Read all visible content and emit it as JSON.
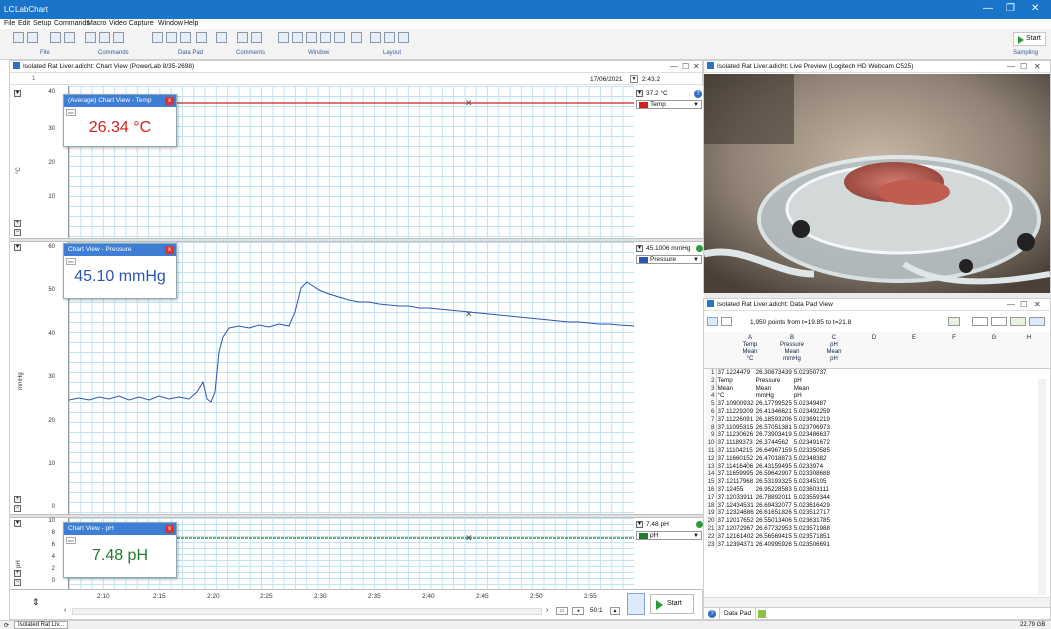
{
  "app": {
    "logo_text": "LC",
    "title": "LabChart"
  },
  "menu": [
    "File",
    "Edit",
    "Setup",
    "Commands",
    "Macro",
    "Video Capture",
    "Window",
    "Help"
  ],
  "toolbar": {
    "groups": [
      "File",
      "Commands",
      "Data Pad",
      "Comments",
      "Window",
      "Layout"
    ],
    "start_label": "Start",
    "sampling_label": "Sampling"
  },
  "chart_window": {
    "title": "Isolated Rat Liver.adicht: Chart View (PowerLab 8/35-2698)",
    "date": "17/06/2021",
    "time": "2:43.2",
    "ruler_mark": "1",
    "channels": [
      {
        "unit": "°C",
        "ticks": [
          "40",
          "30",
          "20",
          "10"
        ],
        "readout": "37.2 °C",
        "name": "Temp",
        "color": "#d42020"
      },
      {
        "unit": "mmHg",
        "ticks": [
          "60",
          "50",
          "40",
          "30",
          "20",
          "10",
          "0"
        ],
        "readout": "45.1006 mmHg",
        "name": "Pressure",
        "color": "#2b55b0"
      },
      {
        "unit": "pH",
        "ticks": [
          "10",
          "8",
          "6",
          "4",
          "2",
          "0"
        ],
        "readout": "7.48 pH",
        "name": "pH",
        "color": "#207a30"
      }
    ],
    "popups": [
      {
        "title": "(Average) Chart View - Temp",
        "value": "26.34 °C",
        "color": "#d42020"
      },
      {
        "title": "Chart View - Pressure",
        "value": "45.10 mmHg",
        "color": "#2b55b0"
      },
      {
        "title": "Chart View - pH",
        "value": "7.48 pH",
        "color": "#207a30"
      }
    ],
    "time_ticks": [
      "2:10",
      "2:15",
      "2:20",
      "2:25",
      "2:30",
      "2:35",
      "2:40",
      "2:45",
      "2:50",
      "2:55"
    ],
    "zoom": "50:1",
    "start_label": "Start"
  },
  "preview_window": {
    "title": "Isolated Rat Liver.adicht: Live Preview (Logitech HD Webcam C525)"
  },
  "datapad_window": {
    "title": "Isolated Rat Liver.adicht: Data Pad View",
    "info": "1,950 points from t=19.85 to t=21.8",
    "columns": [
      {
        "letter": "A",
        "lines": [
          "Temp",
          "Mean",
          "°C"
        ]
      },
      {
        "letter": "B",
        "lines": [
          "Pressure",
          "Mean",
          "mmHg"
        ]
      },
      {
        "letter": "C",
        "lines": [
          "pH",
          "Mean",
          "pH"
        ]
      },
      {
        "letter": "D",
        "lines": []
      },
      {
        "letter": "E",
        "lines": []
      },
      {
        "letter": "F",
        "lines": []
      },
      {
        "letter": "G",
        "lines": []
      },
      {
        "letter": "H",
        "lines": []
      }
    ],
    "rows": [
      [
        "1",
        "37.1224479",
        "26.30873439",
        "5.02350737"
      ],
      [
        "2",
        "Temp",
        "Pressure",
        "pH"
      ],
      [
        "3",
        "Mean",
        "Mean",
        "Mean"
      ],
      [
        "4",
        "°C",
        "mmHg",
        "pH"
      ],
      [
        "5",
        "37.10900932",
        "26.17799525",
        "5.02349487"
      ],
      [
        "6",
        "37.11229209",
        "26.41346621",
        "5.023492259"
      ],
      [
        "7",
        "37.11226091",
        "26.18593206",
        "5.023691219"
      ],
      [
        "8",
        "37.11095315",
        "26.57051381",
        "5.023706973"
      ],
      [
        "9",
        "37.11230626",
        "26.73903419",
        "5.023486637"
      ],
      [
        "10",
        "37.11189373",
        "26.3744562",
        "5.023491672"
      ],
      [
        "11",
        "37.11104215",
        "26.64967159",
        "5.023350585"
      ],
      [
        "12",
        "37.11660152",
        "26.47018873",
        "5.02348382"
      ],
      [
        "13",
        "37.11416406",
        "26.43159495",
        "5.0233974"
      ],
      [
        "14",
        "37.11659995",
        "26.59642907",
        "5.023308688"
      ],
      [
        "15",
        "37.12117968",
        "26.53193325",
        "5.02345105"
      ],
      [
        "16",
        "37.12455",
        "26.95228583",
        "5.023603111"
      ],
      [
        "17",
        "37.12033911",
        "26.78892011",
        "5.023559344"
      ],
      [
        "18",
        "37.12434531",
        "26.69432077",
        "5.023616429"
      ],
      [
        "19",
        "37.12324686",
        "26.61651826",
        "5.023512717"
      ],
      [
        "20",
        "37.12017652",
        "26.55013406",
        "5.023631785"
      ],
      [
        "21",
        "37.12072967",
        "26.67732953",
        "5.023571988"
      ],
      [
        "22",
        "37.12161402",
        "26.56569415",
        "5.023571851"
      ],
      [
        "23",
        "37.12394371",
        "26.40995926",
        "5.023506691"
      ]
    ],
    "tab_label": "Data Pad"
  },
  "statusbar": {
    "doc": "Isolated Rat Liv...",
    "disk": "22.79 GB"
  }
}
